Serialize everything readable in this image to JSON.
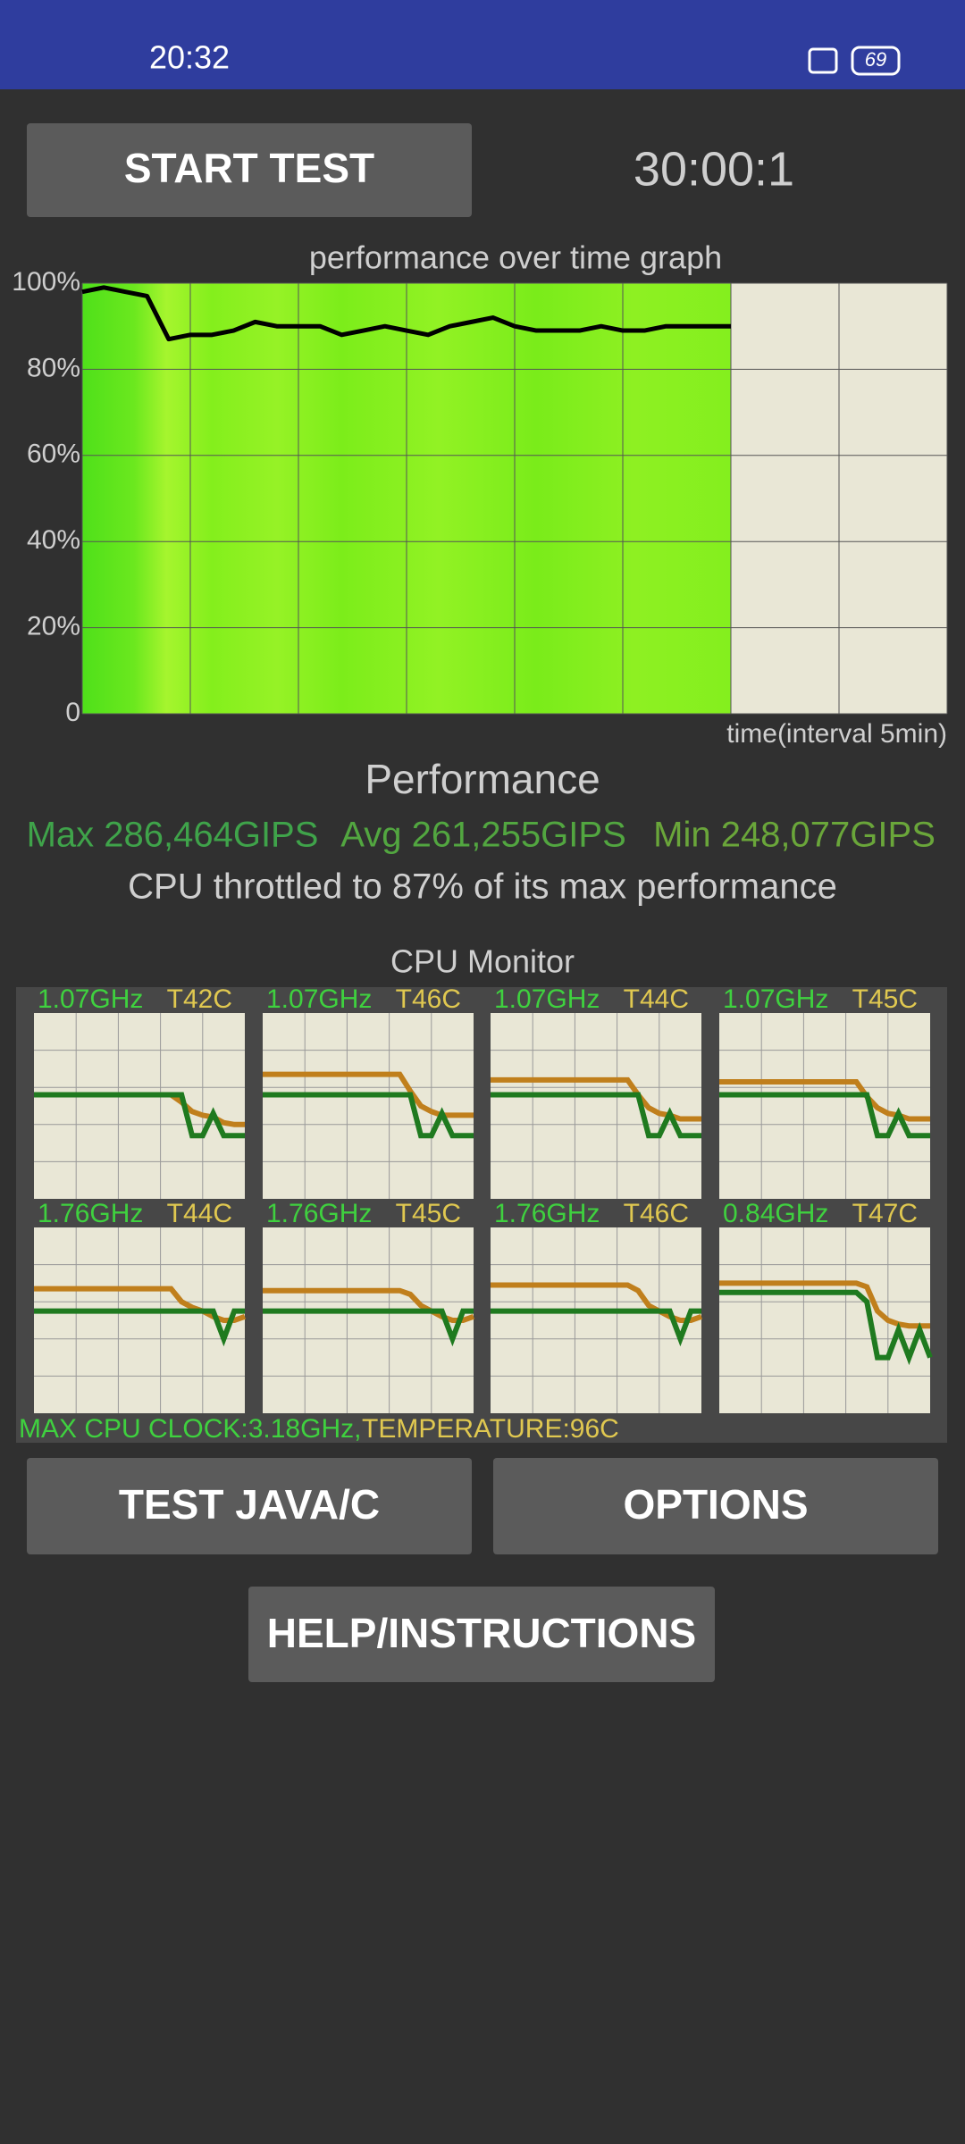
{
  "status_bar": {
    "time": "20:32",
    "battery": "69"
  },
  "buttons": {
    "start": "START TEST",
    "test": "TEST JAVA/C",
    "options": "OPTIONS",
    "help": "HELP/INSTRUCTIONS"
  },
  "timer": "30:00:1",
  "chart_data": {
    "type": "line",
    "title": "performance over time graph",
    "x_label": "time(interval 5min)",
    "x": [
      0,
      1,
      2,
      3,
      4,
      5,
      6,
      7,
      8,
      9,
      10,
      11,
      12,
      13,
      14,
      15,
      16,
      17,
      18,
      19,
      20,
      21,
      22,
      23,
      24,
      25,
      26,
      27,
      28,
      29,
      30
    ],
    "series": [
      {
        "color": "#000000",
        "values": [
          98,
          99,
          98,
          97,
          87,
          88,
          88,
          89,
          91,
          90,
          90,
          90,
          88,
          89,
          90,
          89,
          88,
          90,
          91,
          92,
          90,
          89,
          89,
          89,
          90,
          89,
          89,
          90,
          90,
          90,
          90
        ]
      }
    ],
    "xlim": [
      0,
      40
    ],
    "xticks": [
      0,
      5,
      10,
      15,
      20,
      25,
      30,
      35,
      40
    ],
    "ylim": [
      0,
      100
    ],
    "yticks": [
      0,
      {
        "value": 20,
        "label": "20%"
      },
      {
        "value": 40,
        "label": "40%"
      },
      {
        "value": 60,
        "label": "60%"
      },
      {
        "value": 80,
        "label": "80%"
      },
      {
        "value": 100,
        "label": "100%"
      }
    ],
    "grid": true
  },
  "performance": {
    "heading": "Performance",
    "max": "Max 286,464GIPS",
    "avg": "Avg 261,255GIPS",
    "min": "Min 248,077GIPS",
    "throttle": "CPU throttled to 87% of its max performance"
  },
  "cpu_monitor": {
    "title": "CPU Monitor",
    "clock_color": "#1f7a1f",
    "temp_color": "#c07f1c",
    "cores": [
      {
        "clock": "1.07GHz",
        "temp": "T42C",
        "clock_line": [
          56,
          56,
          56,
          56,
          56,
          56,
          56,
          56,
          56,
          56,
          56,
          56,
          56,
          56,
          56,
          34,
          34,
          46,
          34,
          34,
          34
        ],
        "temp_line": [
          56,
          56,
          56,
          56,
          56,
          56,
          56,
          56,
          56,
          56,
          56,
          56,
          56,
          56,
          52,
          47,
          45,
          44,
          41,
          40,
          40
        ]
      },
      {
        "clock": "1.07GHz",
        "temp": "T46C",
        "clock_line": [
          56,
          56,
          56,
          56,
          56,
          56,
          56,
          56,
          56,
          56,
          56,
          56,
          56,
          56,
          56,
          34,
          34,
          46,
          34,
          34,
          34
        ],
        "temp_line": [
          67,
          67,
          67,
          67,
          67,
          67,
          67,
          67,
          67,
          67,
          67,
          67,
          67,
          67,
          58,
          50,
          47,
          45,
          45,
          45,
          45
        ]
      },
      {
        "clock": "1.07GHz",
        "temp": "T44C",
        "clock_line": [
          56,
          56,
          56,
          56,
          56,
          56,
          56,
          56,
          56,
          56,
          56,
          56,
          56,
          56,
          56,
          34,
          34,
          46,
          34,
          34,
          34
        ],
        "temp_line": [
          64,
          64,
          64,
          64,
          64,
          64,
          64,
          64,
          64,
          64,
          64,
          64,
          64,
          64,
          56,
          49,
          46,
          45,
          43,
          43,
          43
        ]
      },
      {
        "clock": "1.07GHz",
        "temp": "T45C",
        "clock_line": [
          56,
          56,
          56,
          56,
          56,
          56,
          56,
          56,
          56,
          56,
          56,
          56,
          56,
          56,
          56,
          34,
          34,
          46,
          34,
          34,
          34
        ],
        "temp_line": [
          63,
          63,
          63,
          63,
          63,
          63,
          63,
          63,
          63,
          63,
          63,
          63,
          63,
          63,
          55,
          49,
          46,
          45,
          43,
          43,
          43
        ]
      },
      {
        "clock": "1.76GHz",
        "temp": "T44C",
        "clock_line": [
          55,
          55,
          55,
          55,
          55,
          55,
          55,
          55,
          55,
          55,
          55,
          55,
          55,
          55,
          55,
          55,
          55,
          55,
          40,
          55,
          55
        ],
        "temp_line": [
          67,
          67,
          67,
          67,
          67,
          67,
          67,
          67,
          67,
          67,
          67,
          67,
          67,
          67,
          60,
          57,
          55,
          52,
          50,
          50,
          52
        ]
      },
      {
        "clock": "1.76GHz",
        "temp": "T45C",
        "clock_line": [
          55,
          55,
          55,
          55,
          55,
          55,
          55,
          55,
          55,
          55,
          55,
          55,
          55,
          55,
          55,
          55,
          55,
          55,
          40,
          55,
          55
        ],
        "temp_line": [
          66,
          66,
          66,
          66,
          66,
          66,
          66,
          66,
          66,
          66,
          66,
          66,
          66,
          66,
          64,
          58,
          55,
          52,
          50,
          50,
          52
        ]
      },
      {
        "clock": "1.76GHz",
        "temp": "T46C",
        "clock_line": [
          55,
          55,
          55,
          55,
          55,
          55,
          55,
          55,
          55,
          55,
          55,
          55,
          55,
          55,
          55,
          55,
          55,
          55,
          40,
          55,
          55
        ],
        "temp_line": [
          69,
          69,
          69,
          69,
          69,
          69,
          69,
          69,
          69,
          69,
          69,
          69,
          69,
          69,
          66,
          58,
          55,
          52,
          50,
          50,
          52
        ]
      },
      {
        "clock": "0.84GHz",
        "temp": "T47C",
        "clock_line": [
          65,
          65,
          65,
          65,
          65,
          65,
          65,
          65,
          65,
          65,
          65,
          65,
          65,
          65,
          60,
          30,
          30,
          45,
          30,
          45,
          30
        ],
        "temp_line": [
          70,
          70,
          70,
          70,
          70,
          70,
          70,
          70,
          70,
          70,
          70,
          70,
          70,
          70,
          68,
          55,
          50,
          48,
          47,
          47,
          47
        ]
      }
    ],
    "max_clock": "MAX CPU CLOCK:3.18GHz,",
    "max_temp": "TEMPERATURE:96C"
  }
}
